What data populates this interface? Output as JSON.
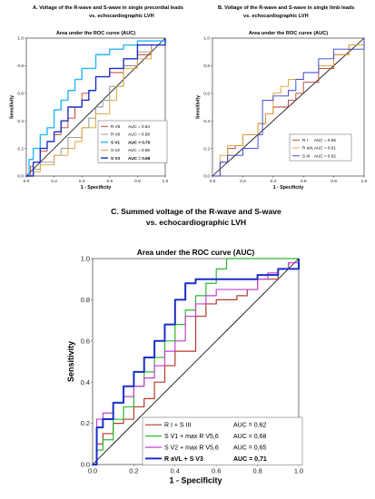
{
  "panels": [
    {
      "id": "A",
      "heading_line1": "A. Voltage of the R-wave and S-wave in single precordial leads",
      "heading_line2": "vs. echocardiographic LVH",
      "title": "Area under the ROC curve (AUC)",
      "xlabel": "1 - Specificity",
      "ylabel": "Sensitivity"
    },
    {
      "id": "B",
      "heading_line1": "B. Voltage of the R-wave and S-wave in single limb leads",
      "heading_line2": "vs. echocardiographic LVH",
      "title": "Area under the ROC curve (AUC)",
      "xlabel": "1 - Specificity",
      "ylabel": "Sensitivity"
    },
    {
      "id": "C",
      "heading_line1": "C. Summed voltage of the R-wave and S-wave",
      "heading_line2": "vs. echocardiographic LVH",
      "title": "Area under the ROC curve (AUC)",
      "xlabel": "1 - Specificity",
      "ylabel": "Sensitivity"
    }
  ],
  "chart_data": [
    {
      "type": "line",
      "panel": "A",
      "title": "Area under the ROC curve (AUC)",
      "xlabel": "1 - Specificity",
      "ylabel": "Sensitivity",
      "xlim": [
        0,
        1
      ],
      "ylim": [
        0,
        1
      ],
      "xticks": [
        "0.0",
        "0.2",
        "0.4",
        "0.6",
        "0.8",
        "1.0"
      ],
      "yticks": [
        "0.0",
        "0.2",
        "0.4",
        "0.6",
        "0.8",
        "1.0"
      ],
      "legend_position": "bottom-right",
      "diagonal": true,
      "series": [
        {
          "name": "R V5",
          "auc": "AUC = 0.64",
          "bold": false,
          "color": "#c0392b",
          "x": [
            0,
            0.03,
            0.05,
            0.1,
            0.15,
            0.2,
            0.25,
            0.3,
            0.35,
            0.4,
            0.45,
            0.5,
            0.6,
            0.7,
            0.8,
            0.9,
            1
          ],
          "y": [
            0,
            0.07,
            0.1,
            0.18,
            0.25,
            0.3,
            0.35,
            0.42,
            0.5,
            0.6,
            0.62,
            0.72,
            0.75,
            0.8,
            0.88,
            0.95,
            1
          ]
        },
        {
          "name": "R V6",
          "auc": "AUC = 0.58",
          "bold": false,
          "color": "#8e8e8e",
          "x": [
            0,
            0.05,
            0.1,
            0.2,
            0.25,
            0.3,
            0.4,
            0.45,
            0.5,
            0.55,
            0.6,
            0.7,
            0.8,
            0.9,
            1
          ],
          "y": [
            0,
            0.05,
            0.1,
            0.15,
            0.2,
            0.28,
            0.35,
            0.42,
            0.5,
            0.55,
            0.65,
            0.8,
            0.9,
            0.95,
            1
          ]
        },
        {
          "name": "S V1",
          "auc": "AUC = 0.70",
          "bold": true,
          "color": "#29b6f6",
          "x": [
            0,
            0.02,
            0.05,
            0.1,
            0.15,
            0.2,
            0.25,
            0.3,
            0.35,
            0.4,
            0.5,
            0.6,
            0.7,
            0.8,
            1
          ],
          "y": [
            0,
            0.12,
            0.2,
            0.3,
            0.35,
            0.48,
            0.55,
            0.62,
            0.7,
            0.78,
            0.88,
            0.92,
            0.95,
            0.98,
            1
          ]
        },
        {
          "name": "S V2",
          "auc": "AUC = 0.56",
          "bold": false,
          "color": "#e0a030",
          "x": [
            0,
            0.05,
            0.1,
            0.2,
            0.3,
            0.35,
            0.4,
            0.5,
            0.6,
            0.65,
            0.7,
            0.8,
            0.9,
            1
          ],
          "y": [
            0,
            0.03,
            0.08,
            0.15,
            0.2,
            0.25,
            0.35,
            0.45,
            0.55,
            0.65,
            0.78,
            0.85,
            0.95,
            1
          ]
        },
        {
          "name": "S V3",
          "auc": "AUC = 0.68",
          "bold": true,
          "color": "#1a2fc8",
          "x": [
            0,
            0.05,
            0.1,
            0.15,
            0.2,
            0.25,
            0.3,
            0.4,
            0.45,
            0.5,
            0.6,
            0.7,
            0.8,
            1
          ],
          "y": [
            0,
            0.1,
            0.2,
            0.25,
            0.32,
            0.4,
            0.5,
            0.55,
            0.62,
            0.72,
            0.78,
            0.85,
            0.95,
            1
          ]
        }
      ]
    },
    {
      "type": "line",
      "panel": "B",
      "title": "Area under the ROC curve (AUC)",
      "xlabel": "1 - Specificity",
      "ylabel": "Sensitivity",
      "xlim": [
        0,
        1
      ],
      "ylim": [
        0,
        1
      ],
      "xticks": [
        "0.0",
        "0.2",
        "0.4",
        "0.6",
        "0.8",
        "1.0"
      ],
      "yticks": [
        "0.0",
        "0.2",
        "0.4",
        "0.6",
        "0.8",
        "1.0"
      ],
      "legend_position": "bottom-right",
      "diagonal": true,
      "series": [
        {
          "name": "R I",
          "auc": "AUC = 0.56",
          "bold": false,
          "color": "#b03a2e",
          "x": [
            0,
            0.05,
            0.1,
            0.15,
            0.2,
            0.3,
            0.35,
            0.4,
            0.5,
            0.55,
            0.6,
            0.7,
            0.8,
            0.9,
            1
          ],
          "y": [
            0,
            0.1,
            0.2,
            0.22,
            0.3,
            0.38,
            0.45,
            0.5,
            0.55,
            0.6,
            0.68,
            0.78,
            0.88,
            0.95,
            1
          ]
        },
        {
          "name": "R aVL",
          "auc": "AUC = 0.61",
          "bold": false,
          "color": "#e0a030",
          "x": [
            0,
            0.05,
            0.1,
            0.2,
            0.3,
            0.35,
            0.4,
            0.45,
            0.5,
            0.6,
            0.7,
            0.8,
            0.9,
            1
          ],
          "y": [
            0,
            0.15,
            0.22,
            0.3,
            0.38,
            0.45,
            0.6,
            0.65,
            0.7,
            0.75,
            0.8,
            0.88,
            0.95,
            1
          ]
        },
        {
          "name": "S III",
          "auc": "AUC = 0.62",
          "bold": false,
          "color": "#2a3fd0",
          "x": [
            0,
            0.05,
            0.1,
            0.2,
            0.3,
            0.33,
            0.4,
            0.5,
            0.55,
            0.6,
            0.7,
            0.8,
            1
          ],
          "y": [
            0,
            0.1,
            0.15,
            0.2,
            0.3,
            0.55,
            0.58,
            0.62,
            0.7,
            0.75,
            0.85,
            0.92,
            1
          ]
        }
      ]
    },
    {
      "type": "line",
      "panel": "C",
      "title": "Area under the ROC curve (AUC)",
      "xlabel": "1 - Specificity",
      "ylabel": "Sensitivity",
      "xlim": [
        0,
        1
      ],
      "ylim": [
        0,
        1
      ],
      "xticks": [
        "0.0",
        "0.2",
        "0.4",
        "0.6",
        "0.8",
        "1.0"
      ],
      "yticks": [
        "0.0",
        "0.2",
        "0.4",
        "0.6",
        "0.8",
        "1.0"
      ],
      "legend_position": "bottom-right",
      "diagonal": true,
      "series": [
        {
          "name": "R I + S III",
          "auc": "AUC = 0,62",
          "bold": false,
          "color": "#b03a2e",
          "x": [
            0,
            0.02,
            0.05,
            0.1,
            0.15,
            0.2,
            0.25,
            0.3,
            0.35,
            0.4,
            0.5,
            0.55,
            0.6,
            0.7,
            0.75,
            0.8,
            0.9,
            0.95,
            1
          ],
          "y": [
            0,
            0.1,
            0.15,
            0.2,
            0.22,
            0.28,
            0.32,
            0.4,
            0.48,
            0.55,
            0.72,
            0.78,
            0.8,
            0.82,
            0.85,
            0.9,
            0.95,
            0.98,
            1
          ]
        },
        {
          "name": "S V1 + max R V5,6",
          "auc": "AUC = 0,68",
          "bold": false,
          "color": "#2db82d",
          "x": [
            0,
            0.02,
            0.05,
            0.1,
            0.15,
            0.2,
            0.25,
            0.3,
            0.35,
            0.4,
            0.45,
            0.5,
            0.55,
            0.6,
            0.65,
            0.7,
            0.8,
            0.9,
            1
          ],
          "y": [
            0,
            0.07,
            0.12,
            0.22,
            0.28,
            0.38,
            0.45,
            0.52,
            0.6,
            0.68,
            0.75,
            0.82,
            0.88,
            0.95,
            1,
            1,
            1,
            1,
            1
          ]
        },
        {
          "name": "S V2 + max R V5,6",
          "auc": "AUC = 0,65",
          "bold": false,
          "color": "#c040d0",
          "x": [
            0,
            0.02,
            0.05,
            0.1,
            0.15,
            0.2,
            0.25,
            0.3,
            0.35,
            0.4,
            0.45,
            0.5,
            0.55,
            0.6,
            0.7,
            0.8,
            0.85,
            0.9,
            0.95,
            1
          ],
          "y": [
            0,
            0.22,
            0.25,
            0.3,
            0.33,
            0.38,
            0.42,
            0.48,
            0.55,
            0.6,
            0.72,
            0.78,
            0.82,
            0.85,
            0.85,
            0.9,
            0.93,
            0.95,
            0.98,
            1
          ]
        },
        {
          "name": "R aVL + S V3",
          "auc": "AUC = 0,71",
          "bold": true,
          "color": "#1a2fc8",
          "x": [
            0,
            0.02,
            0.05,
            0.1,
            0.15,
            0.2,
            0.25,
            0.3,
            0.35,
            0.4,
            0.45,
            0.5,
            0.55,
            0.6,
            0.7,
            0.8,
            0.9,
            1
          ],
          "y": [
            0,
            0.18,
            0.22,
            0.3,
            0.38,
            0.45,
            0.52,
            0.6,
            0.68,
            0.8,
            0.88,
            0.9,
            0.9,
            0.9,
            0.9,
            0.92,
            0.95,
            1
          ]
        }
      ]
    }
  ]
}
